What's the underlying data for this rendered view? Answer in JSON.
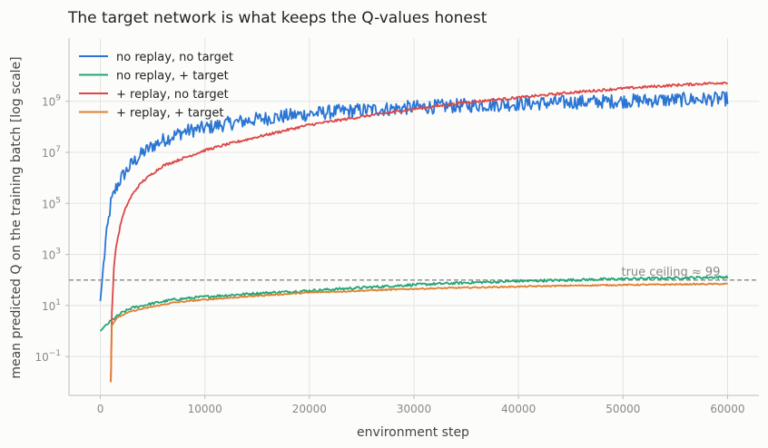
{
  "chart_data": {
    "type": "line",
    "title": "The target network is what keeps the Q-values honest",
    "xlabel": "environment step",
    "ylabel": "mean predicted Q on the training batch  [log scale]",
    "yscale": "log",
    "xlim": [
      -3000,
      63000
    ],
    "ylim": [
      0.003,
      300000000000
    ],
    "xticks": [
      0,
      10000,
      20000,
      30000,
      40000,
      50000,
      60000
    ],
    "xtick_labels": [
      "0",
      "10000",
      "20000",
      "30000",
      "40000",
      "50000",
      "60000"
    ],
    "yticks": [
      0.1,
      10,
      1000,
      100000,
      10000000,
      1000000000
    ],
    "ytick_labels": [
      {
        "base": "10",
        "exp": "−1"
      },
      {
        "base": "10",
        "exp": "1"
      },
      {
        "base": "10",
        "exp": "3"
      },
      {
        "base": "10",
        "exp": "5"
      },
      {
        "base": "10",
        "exp": "7"
      },
      {
        "base": "10",
        "exp": "9"
      }
    ],
    "grid": true,
    "legend_position": "top-left",
    "reference_line": {
      "y": 99,
      "label": "true ceiling ≈ 99",
      "color": "#888888"
    },
    "series": [
      {
        "name": "no replay, no target",
        "color": "#2a75d3",
        "x": [
          0,
          500,
          1000,
          1500,
          2000,
          3000,
          4000,
          5000,
          6000,
          7000,
          8000,
          10000,
          12000,
          15000,
          18000,
          20000,
          22000,
          25000,
          28000,
          30000,
          33000,
          35000,
          38000,
          40000,
          43000,
          45000,
          48000,
          50000,
          53000,
          55000,
          58000,
          60000
        ],
        "y": [
          15,
          3000,
          100000,
          400000,
          1000000,
          3500000,
          9000000,
          18000000,
          30000000,
          45000000,
          65000000,
          90000000,
          130000000,
          200000000,
          270000000,
          320000000,
          380000000,
          450000000,
          520000000,
          580000000,
          640000000,
          690000000,
          750000000,
          800000000,
          870000000,
          920000000,
          980000000,
          1030000000,
          1100000000,
          1150000000,
          1200000000,
          1250000000
        ],
        "noise": 0.28
      },
      {
        "name": "no replay, + target",
        "color": "#22a676",
        "x": [
          0,
          1000,
          2000,
          3000,
          5000,
          7000,
          10000,
          15000,
          20000,
          25000,
          30000,
          35000,
          40000,
          45000,
          50000,
          55000,
          60000
        ],
        "y": [
          1,
          2.5,
          5,
          8,
          12,
          17,
          22,
          30,
          38,
          50,
          65,
          78,
          90,
          100,
          110,
          120,
          130
        ],
        "noise": 0.05
      },
      {
        "name": "+ replay, no target",
        "color": "#dc4747",
        "x": [
          1000,
          1100,
          1300,
          1500,
          2000,
          2500,
          3000,
          3500,
          4000,
          5000,
          6000,
          8000,
          10000,
          12000,
          15000,
          20000,
          25000,
          30000,
          35000,
          40000,
          45000,
          50000,
          55000,
          60000
        ],
        "y": [
          0.01,
          5,
          300,
          2000,
          20000,
          80000,
          200000,
          400000,
          700000,
          1500000,
          3000000,
          6000000,
          12000000,
          20000000,
          40000000,
          120000000,
          250000000,
          500000000,
          900000000,
          1400000000,
          2200000000,
          3200000000,
          4300000000,
          5500000000
        ],
        "noise": 0.05
      },
      {
        "name": "+ replay, + target",
        "color": "#e07f2e",
        "x": [
          1000,
          1050,
          1500,
          2000,
          3000,
          5000,
          7000,
          10000,
          15000,
          20000,
          25000,
          30000,
          35000,
          40000,
          45000,
          50000,
          55000,
          60000
        ],
        "y": [
          0.01,
          1.5,
          3,
          4,
          6,
          9,
          13,
          17,
          24,
          32,
          38,
          45,
          50,
          55,
          60,
          64,
          67,
          70
        ],
        "noise": 0.025
      }
    ]
  }
}
